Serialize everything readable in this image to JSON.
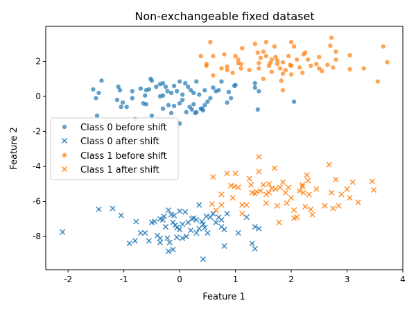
{
  "chart_data": {
    "type": "scatter",
    "title": "Non-exchangeable fixed dataset",
    "xlabel": "Feature 1",
    "ylabel": "Feature 2",
    "xlim": [
      -2.4,
      4.0
    ],
    "ylim": [
      -9.9,
      4.0
    ],
    "xticks": [
      -2,
      -1,
      0,
      1,
      2,
      3,
      4
    ],
    "yticks": [
      -8,
      -6,
      -4,
      -2,
      0,
      2
    ],
    "grid": false,
    "legend_position": "center-left",
    "series": [
      {
        "name": "Class 0 before shift",
        "marker": "circle",
        "color": "#1f77b4",
        "points": [
          [
            -1.4,
            0.9
          ],
          [
            -1.55,
            0.4
          ],
          [
            -1.45,
            0.2
          ],
          [
            -1.5,
            -0.1
          ],
          [
            -1.48,
            -1.1
          ],
          [
            -1.07,
            0.35
          ],
          [
            -0.85,
            0.3
          ],
          [
            -1.05,
            -0.6
          ],
          [
            -1.02,
            -0.35
          ],
          [
            -0.95,
            -0.6
          ],
          [
            -0.85,
            -0.1
          ],
          [
            -0.8,
            -1.3
          ],
          [
            -0.62,
            0.05
          ],
          [
            -0.6,
            -0.45
          ],
          [
            -0.52,
            1.0
          ],
          [
            -0.6,
            0.35
          ],
          [
            -0.55,
            0.4
          ],
          [
            -0.5,
            0.9
          ],
          [
            -0.42,
            0.55
          ],
          [
            -0.35,
            0.7
          ],
          [
            -0.3,
            0.75
          ],
          [
            -0.25,
            0.55
          ],
          [
            -0.22,
            0.3
          ],
          [
            -0.15,
            0.2
          ],
          [
            -0.1,
            0.6
          ],
          [
            -0.05,
            0.3
          ],
          [
            0.0,
            0.85
          ],
          [
            0.05,
            0.1
          ],
          [
            0.1,
            0.75
          ],
          [
            0.15,
            0.55
          ],
          [
            0.2,
            0.35
          ],
          [
            0.25,
            0.2
          ],
          [
            0.3,
            0.85
          ],
          [
            0.35,
            0.1
          ],
          [
            0.4,
            -0.7
          ],
          [
            0.45,
            -0.5
          ],
          [
            0.5,
            -0.3
          ],
          [
            0.55,
            -0.1
          ],
          [
            0.6,
            0.5
          ],
          [
            0.65,
            0.3
          ],
          [
            0.7,
            0.35
          ],
          [
            0.75,
            0.85
          ],
          [
            0.85,
            -0.35
          ],
          [
            0.88,
            0.25
          ],
          [
            0.92,
            -0.1
          ],
          [
            0.98,
            0.6
          ],
          [
            1.0,
            0.65
          ],
          [
            -0.5,
            -1.1
          ],
          [
            -0.3,
            -0.7
          ],
          [
            -0.2,
            -0.5
          ],
          [
            -0.1,
            -0.55
          ],
          [
            0.0,
            -0.4
          ],
          [
            0.05,
            -0.2
          ],
          [
            0.12,
            -0.9
          ],
          [
            0.18,
            -0.6
          ],
          [
            0.22,
            -0.75
          ],
          [
            0.3,
            -0.9
          ],
          [
            0.38,
            -0.7
          ],
          [
            0.42,
            -0.8
          ],
          [
            0.0,
            -1.55
          ],
          [
            -0.15,
            -0.95
          ],
          [
            0.28,
            -0.95
          ],
          [
            1.35,
            0.75
          ],
          [
            1.42,
            0.3
          ],
          [
            1.4,
            -0.75
          ],
          [
            1.35,
            0.5
          ],
          [
            2.05,
            -0.3
          ],
          [
            -0.35,
            0.0
          ],
          [
            0.45,
            0.35
          ],
          [
            0.25,
            -0.45
          ],
          [
            -1.1,
            0.55
          ],
          [
            -0.7,
            0.45
          ],
          [
            -0.65,
            -0.4
          ],
          [
            -1.12,
            -0.2
          ],
          [
            -0.3,
            0.05
          ]
        ]
      },
      {
        "name": "Class 0 after shift",
        "marker": "x",
        "color": "#1f77b4",
        "points": [
          [
            -2.1,
            -7.75
          ],
          [
            -1.45,
            -6.45
          ],
          [
            -1.2,
            -6.4
          ],
          [
            -1.05,
            -6.8
          ],
          [
            -0.9,
            -8.4
          ],
          [
            -0.8,
            -8.25
          ],
          [
            -0.78,
            -7.15
          ],
          [
            -0.7,
            -7.8
          ],
          [
            -0.62,
            -7.8
          ],
          [
            -0.55,
            -8.25
          ],
          [
            -0.5,
            -7.2
          ],
          [
            -0.45,
            -7.15
          ],
          [
            -0.4,
            -7.95
          ],
          [
            -0.35,
            -8.1
          ],
          [
            -0.35,
            -7.0
          ],
          [
            -0.3,
            -7.05
          ],
          [
            -0.28,
            -6.85
          ],
          [
            -0.25,
            -7.45
          ],
          [
            -0.22,
            -8.1
          ],
          [
            -0.2,
            -6.5
          ],
          [
            -0.18,
            -8.35
          ],
          [
            -0.15,
            -6.75
          ],
          [
            -0.12,
            -7.2
          ],
          [
            -0.1,
            -6.8
          ],
          [
            -0.05,
            -7.5
          ],
          [
            -0.05,
            -8.05
          ],
          [
            0.0,
            -7.6
          ],
          [
            0.0,
            -6.55
          ],
          [
            0.05,
            -7.3
          ],
          [
            0.05,
            -8.1
          ],
          [
            0.1,
            -6.6
          ],
          [
            0.15,
            -7.2
          ],
          [
            0.2,
            -7.65
          ],
          [
            0.25,
            -6.95
          ],
          [
            0.3,
            -7.05
          ],
          [
            0.3,
            -7.8
          ],
          [
            0.35,
            -7.55
          ],
          [
            0.35,
            -6.2
          ],
          [
            0.4,
            -7.15
          ],
          [
            0.42,
            -7.3
          ],
          [
            0.45,
            -7.5
          ],
          [
            0.5,
            -7.8
          ],
          [
            0.55,
            -6.9
          ],
          [
            0.6,
            -6.7
          ],
          [
            0.65,
            -7.2
          ],
          [
            0.7,
            -6.9
          ],
          [
            0.75,
            -7.05
          ],
          [
            0.75,
            -7.45
          ],
          [
            0.8,
            -7.6
          ],
          [
            0.85,
            -6.7
          ],
          [
            0.8,
            -8.55
          ],
          [
            1.05,
            -7.8
          ],
          [
            1.2,
            -6.9
          ],
          [
            1.3,
            -8.4
          ],
          [
            1.35,
            -7.45
          ],
          [
            1.35,
            -8.7
          ],
          [
            1.42,
            -7.55
          ],
          [
            0.42,
            -9.3
          ],
          [
            -0.2,
            -8.85
          ],
          [
            -0.12,
            -8.75
          ],
          [
            -0.35,
            -8.35
          ],
          [
            -0.08,
            -7.35
          ],
          [
            0.12,
            -8.0
          ],
          [
            0.22,
            -7.0
          ],
          [
            0.48,
            -6.85
          ]
        ]
      },
      {
        "name": "Class 1 before shift",
        "marker": "circle",
        "color": "#ff7f0e",
        "points": [
          [
            0.38,
            2.3
          ],
          [
            0.48,
            1.85
          ],
          [
            0.48,
            1.75
          ],
          [
            0.6,
            2.3
          ],
          [
            0.6,
            1.2
          ],
          [
            0.55,
            3.1
          ],
          [
            0.75,
            1.6
          ],
          [
            0.8,
            2.4
          ],
          [
            0.85,
            1.7
          ],
          [
            0.85,
            1.5
          ],
          [
            1.0,
            2.3
          ],
          [
            1.05,
            2.1
          ],
          [
            1.05,
            1.9
          ],
          [
            1.1,
            1.85
          ],
          [
            1.1,
            1.6
          ],
          [
            1.12,
            2.75
          ],
          [
            1.35,
            3.0
          ],
          [
            1.4,
            2.5
          ],
          [
            1.42,
            1.9
          ],
          [
            1.42,
            1.6
          ],
          [
            1.45,
            2.2
          ],
          [
            1.5,
            2.55
          ],
          [
            1.55,
            2.3
          ],
          [
            1.55,
            3.1
          ],
          [
            1.6,
            1.75
          ],
          [
            1.62,
            1.9
          ],
          [
            1.65,
            1.4
          ],
          [
            1.7,
            2.85
          ],
          [
            1.72,
            2.25
          ],
          [
            1.75,
            2.05
          ],
          [
            1.75,
            1.85
          ],
          [
            1.8,
            1.6
          ],
          [
            1.82,
            0.9
          ],
          [
            1.85,
            1.95
          ],
          [
            1.85,
            1.3
          ],
          [
            1.9,
            1.5
          ],
          [
            1.95,
            2.3
          ],
          [
            1.98,
            1.8
          ],
          [
            2.0,
            1.75
          ],
          [
            2.0,
            1.25
          ],
          [
            2.05,
            2.85
          ],
          [
            2.1,
            2.1
          ],
          [
            2.15,
            1.65
          ],
          [
            2.2,
            1.35
          ],
          [
            2.22,
            2.4
          ],
          [
            2.25,
            2.5
          ],
          [
            2.3,
            2.1
          ],
          [
            2.35,
            1.75
          ],
          [
            2.45,
            1.85
          ],
          [
            2.5,
            1.6
          ],
          [
            2.5,
            2.25
          ],
          [
            2.55,
            1.45
          ],
          [
            2.65,
            1.8
          ],
          [
            2.7,
            2.9
          ],
          [
            2.72,
            3.35
          ],
          [
            2.75,
            1.65
          ],
          [
            2.8,
            2.1
          ],
          [
            2.8,
            2.55
          ],
          [
            3.05,
            2.35
          ],
          [
            3.05,
            1.55
          ],
          [
            3.3,
            1.6
          ],
          [
            3.55,
            0.85
          ],
          [
            3.65,
            2.85
          ],
          [
            3.72,
            1.95
          ],
          [
            1.85,
            0.35
          ],
          [
            1.5,
            1.0
          ],
          [
            1.25,
            1.5
          ],
          [
            0.95,
            1.35
          ],
          [
            2.0,
            3.1
          ],
          [
            1.65,
            2.1
          ]
        ]
      },
      {
        "name": "Class 1 after shift",
        "marker": "x",
        "color": "#ff7f0e",
        "points": [
          [
            0.6,
            -4.6
          ],
          [
            0.58,
            -6.15
          ],
          [
            0.65,
            -6.5
          ],
          [
            0.75,
            -6.2
          ],
          [
            0.75,
            -5.6
          ],
          [
            0.85,
            -4.4
          ],
          [
            0.92,
            -5.1
          ],
          [
            0.95,
            -5.8
          ],
          [
            1.0,
            -4.4
          ],
          [
            1.05,
            -5.2
          ],
          [
            1.12,
            -6.2
          ],
          [
            1.12,
            -6.7
          ],
          [
            1.2,
            -6.2
          ],
          [
            1.25,
            -4.7
          ],
          [
            1.28,
            -5.05
          ],
          [
            1.35,
            -5.55
          ],
          [
            1.38,
            -5.45
          ],
          [
            1.42,
            -3.45
          ],
          [
            1.42,
            -4.3
          ],
          [
            1.45,
            -5.4
          ],
          [
            1.5,
            -5.05
          ],
          [
            1.55,
            -5.6
          ],
          [
            1.55,
            -6.1
          ],
          [
            1.6,
            -5.0
          ],
          [
            1.65,
            -5.25
          ],
          [
            1.7,
            -4.1
          ],
          [
            1.72,
            -5.3
          ],
          [
            1.75,
            -6.25
          ],
          [
            1.8,
            -5.2
          ],
          [
            1.78,
            -7.2
          ],
          [
            1.85,
            -4.9
          ],
          [
            1.9,
            -5.5
          ],
          [
            1.92,
            -6.1
          ],
          [
            1.95,
            -5.2
          ],
          [
            2.0,
            -5.8
          ],
          [
            2.05,
            -6.5
          ],
          [
            2.1,
            -6.9
          ],
          [
            2.15,
            -5.4
          ],
          [
            2.2,
            -5.15
          ],
          [
            2.22,
            -5.5
          ],
          [
            2.25,
            -6.3
          ],
          [
            2.28,
            -4.5
          ],
          [
            2.3,
            -4.8
          ],
          [
            2.32,
            -5.6
          ],
          [
            2.35,
            -6.45
          ],
          [
            2.45,
            -5.3
          ],
          [
            2.6,
            -6.25
          ],
          [
            2.68,
            -3.9
          ],
          [
            2.72,
            -5.5
          ],
          [
            2.75,
            -6.4
          ],
          [
            2.8,
            -4.75
          ],
          [
            2.85,
            -6.25
          ],
          [
            2.9,
            -5.6
          ],
          [
            3.0,
            -5.3
          ],
          [
            3.05,
            -5.8
          ],
          [
            3.1,
            -4.9
          ],
          [
            3.2,
            -6.05
          ],
          [
            3.45,
            -4.85
          ],
          [
            3.48,
            -5.35
          ],
          [
            1.6,
            -5.5
          ],
          [
            2.05,
            -6.95
          ],
          [
            2.2,
            -5.05
          ],
          [
            2.38,
            -6.75
          ],
          [
            1.3,
            -5.5
          ],
          [
            0.98,
            -5.15
          ]
        ]
      }
    ]
  }
}
